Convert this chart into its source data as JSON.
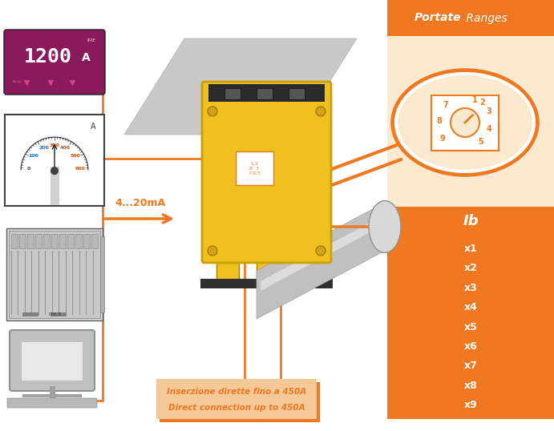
{
  "bg_color": "#ffffff",
  "orange_dark": "#f07820",
  "orange_light": "#f5c898",
  "orange_panel": "#f5e0c0",
  "orange_very_light": "#faebd0",
  "magenta_bg": "#8b1a5c",
  "white": "#ffffff",
  "black": "#000000",
  "title_text_bold": "Portate",
  "title_text_normal": " Ranges",
  "label_4_20ma": "4...20mA",
  "bottom_line1": "Inserzione dirette fino a 450A",
  "bottom_line2": "Direct connection up to 450A",
  "ranges_header": "Ib",
  "ranges": [
    "x1",
    "x2",
    "x3",
    "x4",
    "x5",
    "x6",
    "x7",
    "x8",
    "x9"
  ]
}
